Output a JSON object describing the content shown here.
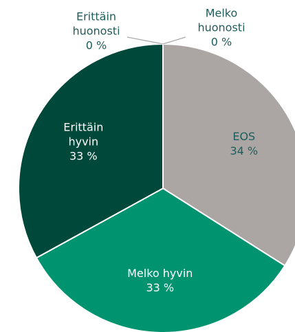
{
  "chart_data": {
    "type": "pie",
    "categories": [
      "EOS",
      "Melko hyvin",
      "Erittäin hyvin",
      "Erittäin huonosti",
      "Melko huonosti"
    ],
    "values": [
      34,
      33,
      33,
      0,
      0
    ],
    "value_labels": [
      "34 %",
      "33 %",
      "33 %",
      "0 %",
      "0 %"
    ],
    "colors": [
      "#aba6a4",
      "#00936f",
      "#00483a",
      "#7a7a7a",
      "#7a7a7a"
    ]
  }
}
